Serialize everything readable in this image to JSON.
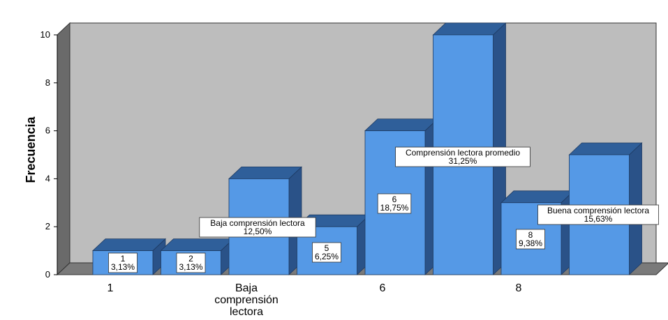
{
  "chart_data": {
    "type": "bar",
    "ylabel": "Frecuencia",
    "xlabel": "",
    "ylim": [
      0,
      10
    ],
    "yticks": [
      0,
      2,
      4,
      6,
      8,
      10
    ],
    "grid": false,
    "values": [
      1,
      1,
      4,
      2,
      6,
      10,
      3,
      5
    ],
    "x_tick_labels": [
      {
        "bar": 0,
        "lines": [
          "1"
        ]
      },
      {
        "bar": 2,
        "lines": [
          "Baja",
          "comprensión",
          "lectora"
        ]
      },
      {
        "bar": 4,
        "lines": [
          "6"
        ]
      },
      {
        "bar": 6,
        "lines": [
          "8"
        ]
      }
    ],
    "data_labels": [
      {
        "bar": 0,
        "lines": [
          "1",
          "3,13%"
        ]
      },
      {
        "bar": 1,
        "lines": [
          "2",
          "3,13%"
        ]
      },
      {
        "bar": 2,
        "lines": [
          "Baja comprensión lectora",
          "12,50%"
        ]
      },
      {
        "bar": 3,
        "lines": [
          "5",
          "6,25%"
        ]
      },
      {
        "bar": 4,
        "lines": [
          "6",
          "18,75%"
        ]
      },
      {
        "bar": 5,
        "lines": [
          "Comprensión lectora promedio",
          "31,25%"
        ]
      },
      {
        "bar": 6,
        "lines": [
          "8",
          "9,38%"
        ]
      },
      {
        "bar": 7,
        "lines": [
          "Buena comprensión lectora",
          "15,63%"
        ]
      }
    ],
    "colors": {
      "bar_front": "#5599e6",
      "bar_top": "#2f5f9a",
      "bar_side": "#2a5288",
      "plot_back": "#bdbdbd",
      "left_wall": "#6a6a6a",
      "floor": "#7a7a7a"
    }
  }
}
